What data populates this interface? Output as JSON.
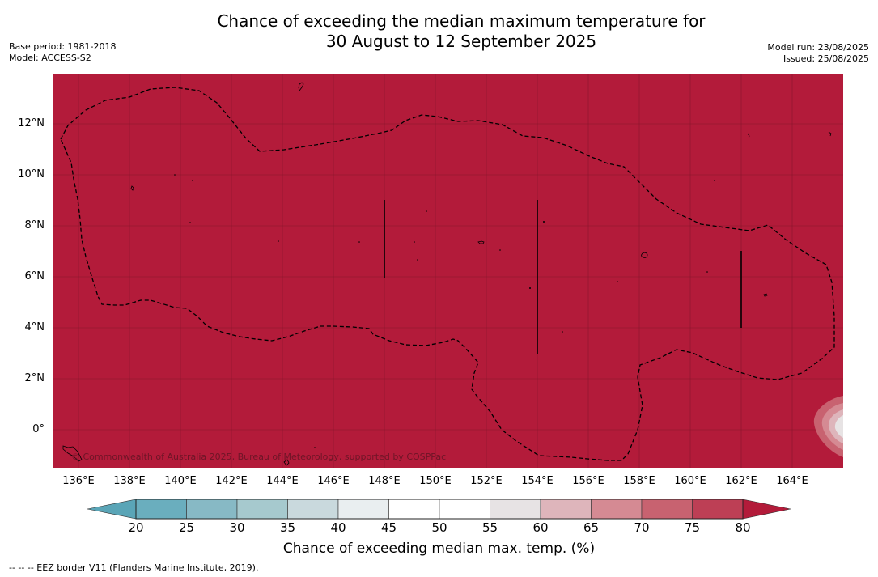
{
  "title": {
    "line1": "Chance of exceeding the median maximum temperature for",
    "line2": "30 August to 12 September 2025"
  },
  "meta": {
    "base_period": "Base period: 1981-2018",
    "model": "Model: ACCESS-S2",
    "model_run": "Model run: 23/08/2025",
    "issued": "Issued: 25/08/2025"
  },
  "map": {
    "background_color": "#b31b3a",
    "copyright": "© Commonwealth of Australia 2025, Bureau of Meteorology, supported by COSPPac",
    "lat_ticks": [
      "12°N",
      "10°N",
      "8°N",
      "6°N",
      "4°N",
      "2°N",
      "0°"
    ],
    "lon_ticks": [
      "136°E",
      "138°E",
      "140°E",
      "142°E",
      "144°E",
      "146°E",
      "148°E",
      "150°E",
      "152°E",
      "154°E",
      "156°E",
      "158°E",
      "160°E",
      "162°E",
      "164°E"
    ],
    "eez_border_style": "dashed",
    "lon_range": [
      135,
      166
    ],
    "lat_range": [
      -1.5,
      14
    ]
  },
  "colorbar": {
    "ticks": [
      "20",
      "25",
      "30",
      "35",
      "40",
      "45",
      "50",
      "55",
      "60",
      "65",
      "70",
      "75",
      "80"
    ],
    "colors": [
      "#5aa5b7",
      "#6aaebe",
      "#87b9c5",
      "#a6c9ce",
      "#c9d9dd",
      "#e9eef0",
      "#ffffff",
      "#ffffff",
      "#e7e3e4",
      "#deb5bb",
      "#d58a93",
      "#c86270",
      "#bd3f55",
      "#b31b3a"
    ],
    "title": "Chance of exceeding median max. temp. (%)"
  },
  "footnote": "--  --  -- EEZ border V11 (Flanders Marine Institute, 2019)."
}
